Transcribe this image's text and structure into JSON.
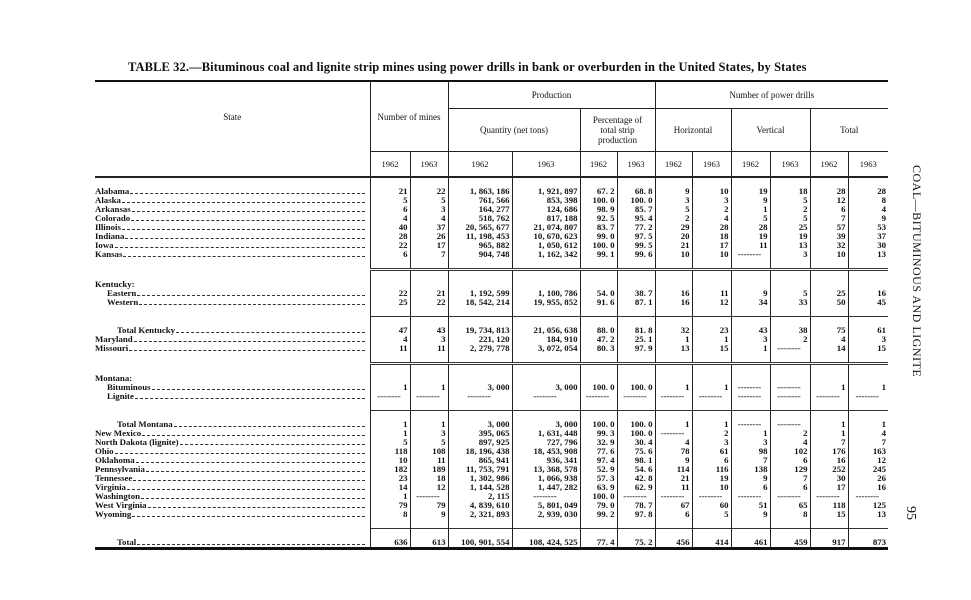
{
  "title": "TABLE 32.—Bituminous coal and lignite strip mines using power drills in bank or overburden in the United States, by States",
  "side_header": "COAL—BITUMINOUS AND LIGNITE",
  "page_number": "95",
  "headers": {
    "state": "State",
    "mines": "Number of mines",
    "production": "Production",
    "quantity": "Quantity (net tons)",
    "percentage": "Percentage of total strip production",
    "drills": "Number of power drills",
    "horizontal": "Horizontal",
    "vertical": "Vertical",
    "total": "Total",
    "years": [
      "1962",
      "1963",
      "1962",
      "1963",
      "1962",
      "1963",
      "1962",
      "1963",
      "1962",
      "1963",
      "1962",
      "1963"
    ]
  },
  "rows": [
    {
      "state": "Alabama",
      "indent": 0,
      "values": [
        "21",
        "22",
        "1, 863, 186",
        "1, 921, 897",
        "67. 2",
        "68. 8",
        "9",
        "10",
        "19",
        "18",
        "28",
        "28"
      ]
    },
    {
      "state": "Alaska",
      "indent": 0,
      "values": [
        "5",
        "5",
        "761, 566",
        "853, 398",
        "100. 0",
        "100. 0",
        "3",
        "3",
        "9",
        "5",
        "12",
        "8"
      ]
    },
    {
      "state": "Arkansas",
      "indent": 0,
      "values": [
        "6",
        "3",
        "164, 277",
        "124, 686",
        "98. 9",
        "85. 7",
        "5",
        "2",
        "1",
        "2",
        "6",
        "4"
      ]
    },
    {
      "state": "Colorado",
      "indent": 0,
      "values": [
        "4",
        "4",
        "518, 762",
        "817, 188",
        "92. 5",
        "95. 4",
        "2",
        "4",
        "5",
        "5",
        "7",
        "9"
      ]
    },
    {
      "state": "Illinois",
      "indent": 0,
      "values": [
        "40",
        "37",
        "20, 565, 677",
        "21, 074, 807",
        "83. 7",
        "77. 2",
        "29",
        "28",
        "28",
        "25",
        "57",
        "53"
      ]
    },
    {
      "state": "Indiana",
      "indent": 0,
      "values": [
        "28",
        "26",
        "11, 198, 453",
        "10, 670, 623",
        "99. 0",
        "97. 5",
        "20",
        "18",
        "19",
        "19",
        "39",
        "37"
      ]
    },
    {
      "state": "Iowa",
      "indent": 0,
      "values": [
        "22",
        "17",
        "965, 882",
        "1, 050, 612",
        "100. 0",
        "99. 5",
        "21",
        "17",
        "11",
        "13",
        "32",
        "30"
      ]
    },
    {
      "state": "Kansas",
      "indent": 0,
      "values": [
        "6",
        "7",
        "904, 748",
        "1, 162, 342",
        "99. 1",
        "99. 6",
        "10",
        "10",
        "--------",
        "3",
        "10",
        "13"
      ],
      "sep_after": "dbl"
    },
    {
      "state": "Kentucky:",
      "indent": 0,
      "heading": true,
      "values": []
    },
    {
      "state": "Eastern",
      "indent": 1,
      "values": [
        "22",
        "21",
        "1, 192, 599",
        "1, 100, 786",
        "54. 0",
        "38. 7",
        "16",
        "11",
        "9",
        "5",
        "25",
        "16"
      ]
    },
    {
      "state": "Western",
      "indent": 1,
      "values": [
        "25",
        "22",
        "18, 542, 214",
        "19, 955, 852",
        "91. 6",
        "87. 1",
        "16",
        "12",
        "34",
        "33",
        "50",
        "45"
      ],
      "sep_after": "sgl"
    },
    {
      "state": "Total Kentucky",
      "indent": 2,
      "values": [
        "47",
        "43",
        "19, 734, 813",
        "21, 056, 638",
        "88. 0",
        "81. 8",
        "32",
        "23",
        "43",
        "38",
        "75",
        "61"
      ]
    },
    {
      "state": "Maryland",
      "indent": 0,
      "values": [
        "4",
        "3",
        "221, 120",
        "184, 910",
        "47. 2",
        "25. 1",
        "1",
        "1",
        "3",
        "2",
        "4",
        "3"
      ]
    },
    {
      "state": "Missouri",
      "indent": 0,
      "values": [
        "11",
        "11",
        "2, 279, 778",
        "3, 072, 054",
        "80. 3",
        "97. 9",
        "13",
        "15",
        "1",
        "--------",
        "14",
        "15"
      ],
      "sep_after": "dbl"
    },
    {
      "state": "Montana:",
      "indent": 0,
      "heading": true,
      "values": []
    },
    {
      "state": "Bituminous",
      "indent": 1,
      "values": [
        "1",
        "1",
        "3, 000",
        "3, 000",
        "100. 0",
        "100. 0",
        "1",
        "1",
        "--------",
        "--------",
        "1",
        "1"
      ]
    },
    {
      "state": "Lignite",
      "indent": 1,
      "values": [
        "--------",
        "--------",
        "--------",
        "--------",
        "--------",
        "--------",
        "--------",
        "--------",
        "--------",
        "--------",
        "--------",
        "--------"
      ],
      "sep_after": "sgl"
    },
    {
      "state": "Total Montana",
      "indent": 2,
      "values": [
        "1",
        "1",
        "3, 000",
        "3, 000",
        "100. 0",
        "100. 0",
        "1",
        "1",
        "--------",
        "--------",
        "1",
        "1"
      ]
    },
    {
      "state": "New Mexico",
      "indent": 0,
      "values": [
        "1",
        "3",
        "395, 065",
        "1, 631, 448",
        "99. 3",
        "100. 0",
        "--------",
        "2",
        "1",
        "2",
        "1",
        "4"
      ]
    },
    {
      "state": "North Dakota (lignite)",
      "indent": 0,
      "values": [
        "5",
        "5",
        "897, 925",
        "727, 796",
        "32. 9",
        "30. 4",
        "4",
        "3",
        "3",
        "4",
        "7",
        "7"
      ]
    },
    {
      "state": "Ohio",
      "indent": 0,
      "values": [
        "118",
        "108",
        "18, 196, 438",
        "18, 453, 908",
        "77. 6",
        "75. 6",
        "78",
        "61",
        "98",
        "102",
        "176",
        "163"
      ]
    },
    {
      "state": "Oklahoma",
      "indent": 0,
      "values": [
        "10",
        "11",
        "865, 941",
        "936, 341",
        "97. 4",
        "98. 1",
        "9",
        "6",
        "7",
        "6",
        "16",
        "12"
      ]
    },
    {
      "state": "Pennsylvania",
      "indent": 0,
      "values": [
        "182",
        "189",
        "11, 753, 791",
        "13, 368, 578",
        "52. 9",
        "54. 6",
        "114",
        "116",
        "138",
        "129",
        "252",
        "245"
      ]
    },
    {
      "state": "Tennessee",
      "indent": 0,
      "values": [
        "23",
        "18",
        "1, 302, 986",
        "1, 066, 938",
        "57. 3",
        "42. 8",
        "21",
        "19",
        "9",
        "7",
        "30",
        "26"
      ]
    },
    {
      "state": "Virginia",
      "indent": 0,
      "values": [
        "14",
        "12",
        "1, 144, 528",
        "1, 447, 282",
        "63. 9",
        "62. 9",
        "11",
        "10",
        "6",
        "6",
        "17",
        "16"
      ]
    },
    {
      "state": "Washington",
      "indent": 0,
      "values": [
        "1",
        "--------",
        "2, 115",
        "--------",
        "100. 0",
        "--------",
        "--------",
        "--------",
        "--------",
        "--------",
        "--------",
        "--------"
      ]
    },
    {
      "state": "West Virginia",
      "indent": 0,
      "values": [
        "79",
        "79",
        "4, 839, 610",
        "5, 801, 049",
        "79. 0",
        "78. 7",
        "67",
        "60",
        "51",
        "65",
        "118",
        "125"
      ]
    },
    {
      "state": "Wyoming",
      "indent": 0,
      "values": [
        "8",
        "9",
        "2, 321, 893",
        "2, 939, 030",
        "99. 2",
        "97. 8",
        "6",
        "5",
        "9",
        "8",
        "15",
        "13"
      ],
      "sep_after": "sgl"
    },
    {
      "state": "Total",
      "indent": 2,
      "total": true,
      "values": [
        "636",
        "613",
        "100, 901, 554",
        "108, 424, 525",
        "77. 4",
        "75. 2",
        "456",
        "414",
        "461",
        "459",
        "917",
        "873"
      ]
    }
  ]
}
